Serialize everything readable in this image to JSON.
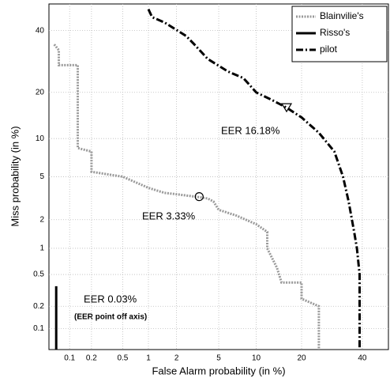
{
  "chart_data": {
    "type": "det",
    "xlabel": "False Alarm probability (in %)",
    "ylabel": "Miss probability (in %)",
    "xlim": [
      0.05,
      50
    ],
    "ylim": [
      0.05,
      50
    ],
    "xticks": [
      0.1,
      0.2,
      0.5,
      1,
      2,
      5,
      10,
      20,
      40
    ],
    "yticks": [
      0.1,
      0.2,
      0.5,
      1,
      2,
      5,
      10,
      20,
      40
    ],
    "grid": true,
    "legend": "upper right",
    "series": [
      {
        "name": "Blainvilie's",
        "color": "#999999",
        "style": "dotted",
        "x": [
          0.06,
          0.07,
          0.07,
          0.13,
          0.13,
          0.2,
          0.2,
          0.5,
          1,
          1.5,
          2,
          3.3,
          4,
          4.5,
          5,
          7,
          10,
          12,
          12,
          14,
          15,
          20,
          20,
          25,
          25
        ],
        "y": [
          35,
          33,
          28,
          28,
          8.5,
          8,
          5.5,
          5,
          4,
          3.6,
          3.5,
          3.3,
          3.2,
          3,
          2.5,
          2.2,
          1.8,
          1.5,
          1,
          0.6,
          0.4,
          0.4,
          0.25,
          0.2,
          0.05
        ]
      },
      {
        "name": "Risso's",
        "color": "#000000",
        "style": "solid",
        "x": [
          0.064,
          0.064
        ],
        "y": [
          0.36,
          0.05
        ]
      },
      {
        "name": "pilot",
        "color": "#000000",
        "style": "dashdot",
        "x": [
          1,
          1.1,
          1.5,
          2.5,
          3,
          4,
          6,
          8,
          10,
          13,
          16.18,
          20,
          25,
          30,
          33,
          35,
          37,
          38,
          39,
          39
        ],
        "y": [
          48,
          45,
          43,
          38,
          35,
          30,
          26,
          24,
          20,
          18,
          16.18,
          14,
          11,
          8,
          5,
          3,
          1.5,
          1,
          0.5,
          0.05
        ]
      }
    ],
    "markers": [
      {
        "shape": "circle",
        "x": 3.33,
        "y": 3.33
      },
      {
        "shape": "triangle",
        "x": 16.18,
        "y": 16.18
      }
    ],
    "annotations": [
      "EER 16.18%",
      "EER 3.33%",
      "EER 0.03%",
      "(EER point off axis)"
    ]
  }
}
